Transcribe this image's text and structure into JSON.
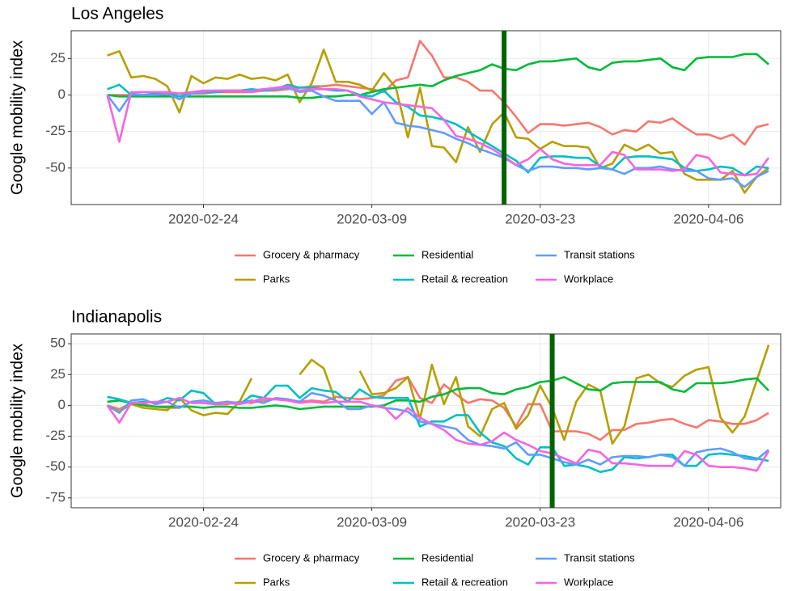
{
  "chart_data": [
    {
      "type": "line",
      "title": "Los Angeles",
      "y_label": "Google mobility index",
      "x": [
        "2020-02-16",
        "2020-02-17",
        "2020-02-18",
        "2020-02-19",
        "2020-02-20",
        "2020-02-21",
        "2020-02-22",
        "2020-02-23",
        "2020-02-24",
        "2020-02-25",
        "2020-02-26",
        "2020-02-27",
        "2020-02-28",
        "2020-02-29",
        "2020-03-01",
        "2020-03-02",
        "2020-03-03",
        "2020-03-04",
        "2020-03-05",
        "2020-03-06",
        "2020-03-07",
        "2020-03-08",
        "2020-03-09",
        "2020-03-10",
        "2020-03-11",
        "2020-03-12",
        "2020-03-13",
        "2020-03-14",
        "2020-03-15",
        "2020-03-16",
        "2020-03-17",
        "2020-03-18",
        "2020-03-19",
        "2020-03-20",
        "2020-03-21",
        "2020-03-22",
        "2020-03-23",
        "2020-03-24",
        "2020-03-25",
        "2020-03-26",
        "2020-03-27",
        "2020-03-28",
        "2020-03-29",
        "2020-03-30",
        "2020-03-31",
        "2020-04-01",
        "2020-04-02",
        "2020-04-03",
        "2020-04-04",
        "2020-04-05",
        "2020-04-06",
        "2020-04-07",
        "2020-04-08",
        "2020-04-09",
        "2020-04-10",
        "2020-04-11"
      ],
      "xlim": [
        "2020-02-13",
        "2020-04-12"
      ],
      "xticks": [
        "2020-02-24",
        "2020-03-09",
        "2020-03-23",
        "2020-04-06"
      ],
      "ylim": [
        -75,
        44
      ],
      "yticks": [
        -50,
        -25,
        0,
        25
      ],
      "grid": true,
      "vline": "2020-03-20",
      "vline_color": "#006400",
      "series": [
        {
          "name": "Grocery & pharmacy",
          "color": "#F8766D",
          "values": [
            0,
            0,
            0,
            0,
            0,
            0,
            1,
            1,
            1,
            2,
            2,
            2,
            2,
            3,
            3,
            4,
            5,
            6,
            6,
            7,
            6,
            5,
            4,
            2,
            10,
            12,
            37,
            27,
            12,
            12,
            9,
            3,
            3,
            -5,
            -15,
            -26,
            -20,
            -20,
            -21,
            -20,
            -19,
            -22,
            -27,
            -24,
            -25,
            -18,
            -19,
            -16,
            -22,
            -27,
            -27,
            -30,
            -27,
            -34,
            -22,
            -20
          ]
        },
        {
          "name": "Parks",
          "color": "#B79F00",
          "values": [
            27,
            30,
            12,
            13,
            11,
            6,
            -12,
            13,
            8,
            12,
            11,
            14,
            11,
            12,
            10,
            14,
            -5,
            8,
            31,
            9,
            9,
            7,
            3,
            15,
            5,
            -29,
            5,
            -35,
            -36,
            -46,
            -22,
            -39,
            -20,
            -12,
            -29,
            -30,
            -37,
            -32,
            -35,
            -35,
            -36,
            -50,
            -47,
            -34,
            -38,
            -34,
            -40,
            -39,
            -54,
            -58,
            -58,
            -58,
            -52,
            -67,
            -56,
            -50
          ]
        },
        {
          "name": "Residential",
          "color": "#00BA38",
          "values": [
            0,
            -1,
            -1,
            -1,
            -1,
            -1,
            -1,
            -1,
            -1,
            -1,
            -1,
            -1,
            -1,
            -1,
            -1,
            -1,
            -2,
            -2,
            -1,
            -1,
            0,
            0,
            2,
            4,
            5,
            6,
            7,
            6,
            10,
            13,
            15,
            17,
            21,
            18,
            17,
            21,
            23,
            23,
            24,
            25,
            19,
            17,
            22,
            23,
            23,
            24,
            25,
            19,
            17,
            25,
            26,
            26,
            26,
            28,
            28,
            21
          ]
        },
        {
          "name": "Retail & recreation",
          "color": "#00BFC4",
          "values": [
            4,
            7,
            0,
            0,
            1,
            1,
            -1,
            1,
            2,
            2,
            3,
            3,
            4,
            3,
            4,
            7,
            5,
            5,
            4,
            3,
            3,
            0,
            -1,
            3,
            -5,
            -8,
            -14,
            -15,
            -17,
            -20,
            -25,
            -30,
            -35,
            -40,
            -45,
            -53,
            -43,
            -42,
            -42,
            -43,
            -43,
            -49,
            -51,
            -43,
            -42,
            -42,
            -43,
            -44,
            -50,
            -52,
            -51,
            -49,
            -50,
            -55,
            -49,
            -50
          ]
        },
        {
          "name": "Transit stations",
          "color": "#619CFF",
          "values": [
            0,
            -11,
            1,
            0,
            0,
            1,
            -3,
            1,
            2,
            3,
            3,
            3,
            3,
            4,
            4,
            5,
            2,
            3,
            -1,
            -4,
            -4,
            -4,
            -13,
            -5,
            -19,
            -21,
            -22,
            -24,
            -26,
            -30,
            -33,
            -37,
            -40,
            -43,
            -48,
            -52,
            -49,
            -49,
            -50,
            -50,
            -51,
            -50,
            -51,
            -54,
            -50,
            -50,
            -49,
            -51,
            -52,
            -52,
            -57,
            -58,
            -57,
            -63,
            -56,
            -52
          ]
        },
        {
          "name": "Workplace",
          "color": "#F564E3",
          "values": [
            0,
            -32,
            2,
            2,
            2,
            2,
            1,
            2,
            3,
            3,
            3,
            3,
            2,
            4,
            5,
            6,
            3,
            4,
            4,
            4,
            3,
            -1,
            -3,
            -5,
            -6,
            -7,
            -8,
            -9,
            -17,
            -28,
            -30,
            -33,
            -37,
            -42,
            -48,
            -44,
            -37,
            -44,
            -47,
            -48,
            -48,
            -48,
            -39,
            -41,
            -51,
            -51,
            -51,
            -52,
            -51,
            -41,
            -43,
            -53,
            -54,
            -55,
            -54,
            -43
          ]
        }
      ]
    },
    {
      "type": "line",
      "title": "Indianapolis",
      "y_label": "Google mobility index",
      "x": [
        "2020-02-16",
        "2020-02-17",
        "2020-02-18",
        "2020-02-19",
        "2020-02-20",
        "2020-02-21",
        "2020-02-22",
        "2020-02-23",
        "2020-02-24",
        "2020-02-25",
        "2020-02-26",
        "2020-02-27",
        "2020-02-28",
        "2020-02-29",
        "2020-03-01",
        "2020-03-02",
        "2020-03-03",
        "2020-03-04",
        "2020-03-05",
        "2020-03-06",
        "2020-03-07",
        "2020-03-08",
        "2020-03-09",
        "2020-03-10",
        "2020-03-11",
        "2020-03-12",
        "2020-03-13",
        "2020-03-14",
        "2020-03-15",
        "2020-03-16",
        "2020-03-17",
        "2020-03-18",
        "2020-03-19",
        "2020-03-20",
        "2020-03-21",
        "2020-03-22",
        "2020-03-23",
        "2020-03-24",
        "2020-03-25",
        "2020-03-26",
        "2020-03-27",
        "2020-03-28",
        "2020-03-29",
        "2020-03-30",
        "2020-03-31",
        "2020-04-01",
        "2020-04-02",
        "2020-04-03",
        "2020-04-04",
        "2020-04-05",
        "2020-04-06",
        "2020-04-07",
        "2020-04-08",
        "2020-04-09",
        "2020-04-10",
        "2020-04-11"
      ],
      "xlim": [
        "2020-02-13",
        "2020-04-12"
      ],
      "xticks": [
        "2020-02-24",
        "2020-03-09",
        "2020-03-23",
        "2020-04-06"
      ],
      "ylim": [
        -83,
        58
      ],
      "yticks": [
        -75,
        -50,
        -25,
        0,
        25,
        50
      ],
      "grid": true,
      "vline": "2020-03-24",
      "vline_color": "#006400",
      "series": [
        {
          "name": "Grocery & pharmacy",
          "color": "#F8766D",
          "values": [
            0,
            -3,
            2,
            1,
            -1,
            -2,
            -2,
            3,
            2,
            1,
            1,
            3,
            2,
            4,
            5,
            4,
            3,
            4,
            3,
            7,
            6,
            5,
            6,
            8,
            20,
            23,
            6,
            2,
            17,
            9,
            2,
            5,
            4,
            -2,
            -17,
            1,
            1,
            -21,
            -21,
            -21,
            -23,
            -28,
            -20,
            -20,
            -15,
            -14,
            -12,
            -11,
            -15,
            -18,
            -12,
            -13,
            -15,
            -15,
            -12,
            -6
          ]
        },
        {
          "name": "Parks",
          "color": "#B79F00",
          "values": [
            0,
            -5,
            1,
            -2,
            -3,
            -4,
            6,
            -4,
            -8,
            -6,
            -7,
            3,
            22,
            null,
            null,
            null,
            25,
            37,
            30,
            3,
            null,
            28,
            9,
            10,
            14,
            23,
            -11,
            33,
            1,
            23,
            -17,
            -25,
            -3,
            2,
            -19,
            -8,
            16,
            -2,
            -28,
            3,
            17,
            12,
            -31,
            -17,
            22,
            25,
            18,
            15,
            24,
            29,
            31,
            -10,
            -22,
            -9,
            20,
            49
          ]
        },
        {
          "name": "Residential",
          "color": "#00BA38",
          "values": [
            3,
            4,
            2,
            0,
            -1,
            -1,
            -1,
            -1,
            -2,
            -1,
            -1,
            -2,
            -2,
            -1,
            0,
            -1,
            -3,
            -2,
            -1,
            -1,
            -1,
            -1,
            -1,
            0,
            4,
            4,
            3,
            7,
            9,
            13,
            14,
            14,
            10,
            9,
            13,
            15,
            19,
            20,
            23,
            18,
            13,
            12,
            18,
            19,
            19,
            19,
            19,
            13,
            11,
            18,
            18,
            18,
            19,
            21,
            22,
            12
          ]
        },
        {
          "name": "Retail & recreation",
          "color": "#00BFC4",
          "values": [
            7,
            5,
            2,
            3,
            2,
            6,
            4,
            12,
            10,
            1,
            3,
            1,
            8,
            6,
            16,
            16,
            6,
            14,
            12,
            11,
            3,
            13,
            7,
            6,
            6,
            6,
            -17,
            -13,
            -13,
            -8,
            -8,
            -22,
            -30,
            -33,
            -43,
            -48,
            -34,
            -34,
            -49,
            -48,
            -50,
            -54,
            -52,
            -42,
            -43,
            -42,
            -40,
            -40,
            -49,
            -49,
            -40,
            -39,
            -40,
            -41,
            -43,
            -45
          ]
        },
        {
          "name": "Transit stations",
          "color": "#619CFF",
          "values": [
            0,
            -6,
            4,
            5,
            1,
            3,
            -2,
            3,
            4,
            2,
            3,
            2,
            4,
            2,
            6,
            5,
            3,
            10,
            8,
            4,
            -3,
            -3,
            0,
            -2,
            -3,
            -5,
            -13,
            -15,
            -17,
            -19,
            -28,
            -32,
            -33,
            -35,
            -30,
            -40,
            -40,
            -43,
            -46,
            -48,
            -44,
            -48,
            -42,
            -41,
            -41,
            -42,
            -40,
            -42,
            -49,
            -38,
            -36,
            -35,
            -38,
            -43,
            -44,
            -36
          ]
        },
        {
          "name": "Workplace",
          "color": "#F564E3",
          "values": [
            0,
            -14,
            2,
            2,
            3,
            3,
            6,
            2,
            2,
            1,
            2,
            1,
            3,
            6,
            5,
            4,
            2,
            3,
            2,
            3,
            3,
            3,
            0,
            -1,
            -11,
            -2,
            -10,
            -15,
            -20,
            -28,
            -31,
            -32,
            -29,
            -22,
            -28,
            -32,
            -37,
            -39,
            -43,
            -47,
            -36,
            -38,
            -47,
            -47,
            -48,
            -49,
            -49,
            -49,
            -37,
            -40,
            -49,
            -50,
            -50,
            -51,
            -53,
            -37
          ]
        }
      ]
    }
  ]
}
